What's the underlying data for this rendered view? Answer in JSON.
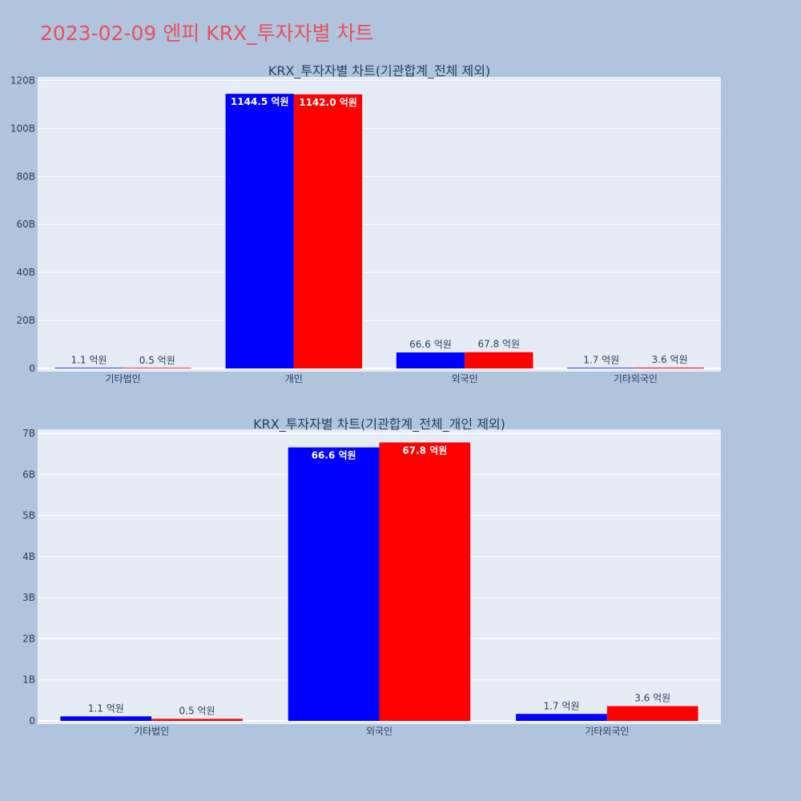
{
  "page": {
    "title": "2023-02-09 엔피 KRX_투자자별 차트"
  },
  "colors": {
    "series_a": "#0000ff",
    "series_b": "#ff0000",
    "plot_bg": "#e5ecf6",
    "page_bg": "#b0c4de",
    "title": "#e8505b"
  },
  "chart_data": [
    {
      "type": "bar",
      "title": "KRX_투자자별 차트(기관합계_전체 제외)",
      "categories": [
        "기타법인",
        "개인",
        "외국인",
        "기타외국인"
      ],
      "series": [
        {
          "values": [
            110000000,
            114450000000,
            6660000000,
            170000000
          ],
          "labels": [
            "1.1 억원",
            "1144.5 억원",
            "66.6 억원",
            "1.7 억원"
          ]
        },
        {
          "values": [
            50000000,
            114200000000,
            6780000000,
            360000000
          ],
          "labels": [
            "0.5 억원",
            "1142.0 억원",
            "67.8 억원",
            "3.6 억원"
          ]
        }
      ],
      "y_ticks": [
        0,
        20000000000,
        40000000000,
        60000000000,
        80000000000,
        100000000000,
        120000000000
      ],
      "y_tick_labels": [
        "0",
        "20B",
        "40B",
        "60B",
        "80B",
        "100B",
        "120B"
      ],
      "ylim": [
        0,
        121500000000
      ],
      "grid": true,
      "legend": "none"
    },
    {
      "type": "bar",
      "title": "KRX_투자자별 차트(기관합계_전체_개인 제외)",
      "categories": [
        "기타법인",
        "외국인",
        "기타외국인"
      ],
      "series": [
        {
          "values": [
            110000000,
            6660000000,
            170000000
          ],
          "labels": [
            "1.1 억원",
            "66.6 억원",
            "1.7 억원"
          ]
        },
        {
          "values": [
            50000000,
            6780000000,
            360000000
          ],
          "labels": [
            "0.5 억원",
            "67.8 억원",
            "3.6 억원"
          ]
        }
      ],
      "y_ticks": [
        0,
        1000000000,
        2000000000,
        3000000000,
        4000000000,
        5000000000,
        6000000000,
        7000000000
      ],
      "y_tick_labels": [
        "0",
        "1B",
        "2B",
        "3B",
        "4B",
        "5B",
        "6B",
        "7B"
      ],
      "ylim": [
        0,
        7100000000
      ],
      "grid": true,
      "legend": "none"
    }
  ]
}
